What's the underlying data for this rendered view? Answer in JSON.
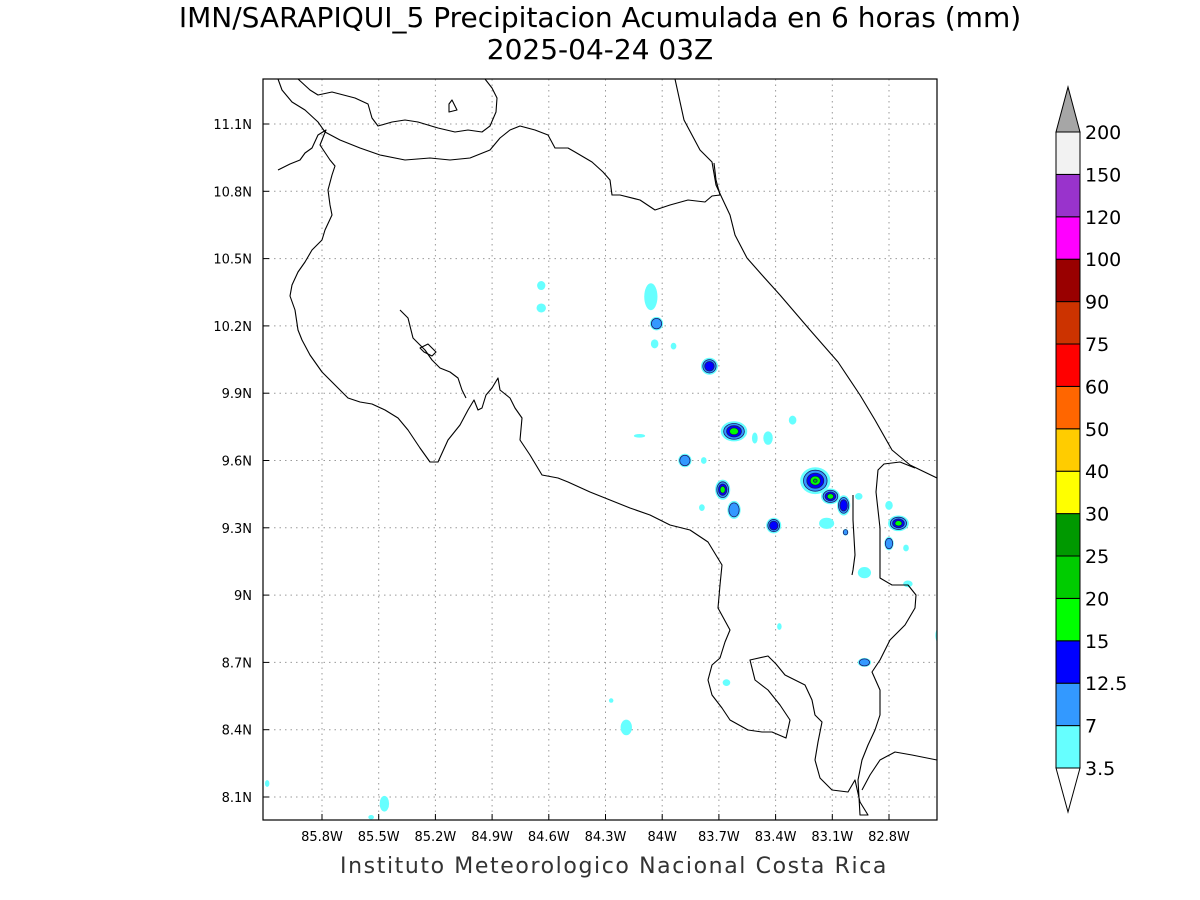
{
  "title": {
    "line1": "IMN/SARAPIQUI_5 Precipitacion Acumulada en 6 horas (mm)",
    "line2": "2025-04-24 03Z"
  },
  "footer": "Instituto Meteorologico Nacional Costa Rica",
  "axes": {
    "lon_ticks": [
      "85.8W",
      "85.5W",
      "85.2W",
      "84.9W",
      "84.6W",
      "84.3W",
      "84W",
      "83.7W",
      "83.4W",
      "83.1W",
      "82.8W"
    ],
    "lat_ticks": [
      "11.1N",
      "10.8N",
      "10.5N",
      "10.2N",
      "9.9N",
      "9.6N",
      "9.3N",
      "9N",
      "8.7N",
      "8.4N",
      "8.1N"
    ],
    "grid": "dotted"
  },
  "colorbar": {
    "labels": [
      "3.5",
      "7",
      "12.5",
      "15",
      "20",
      "25",
      "30",
      "40",
      "50",
      "60",
      "75",
      "90",
      "100",
      "120",
      "150",
      "200"
    ],
    "colors": [
      "#ffffff",
      "#66ffff",
      "#3399ff",
      "#0000ff",
      "#00ff00",
      "#00cc00",
      "#009900",
      "#ffff00",
      "#ffcc00",
      "#ff6600",
      "#ff0000",
      "#cc3300",
      "#990000",
      "#ff00ff",
      "#9933cc",
      "#f2f2f2",
      "#a6a6a6"
    ]
  },
  "precip_cells": [
    {
      "lon": -84.64,
      "lat": 10.38,
      "rx": 0.022,
      "ry": 0.02,
      "level": 0
    },
    {
      "lon": -84.64,
      "lat": 10.28,
      "rx": 0.025,
      "ry": 0.02,
      "level": 0
    },
    {
      "lon": -84.06,
      "lat": 10.33,
      "rx": 0.035,
      "ry": 0.06,
      "level": 0
    },
    {
      "lon": -84.03,
      "lat": 10.21,
      "rx": 0.035,
      "ry": 0.03,
      "level": 1
    },
    {
      "lon": -84.04,
      "lat": 10.12,
      "rx": 0.02,
      "ry": 0.02,
      "level": 0
    },
    {
      "lon": -83.94,
      "lat": 10.11,
      "rx": 0.015,
      "ry": 0.015,
      "level": 0
    },
    {
      "lon": -83.75,
      "lat": 10.02,
      "rx": 0.045,
      "ry": 0.038,
      "level": 2
    },
    {
      "lon": -83.62,
      "lat": 9.73,
      "rx": 0.07,
      "ry": 0.045,
      "level": 3
    },
    {
      "lon": -83.44,
      "lat": 9.7,
      "rx": 0.025,
      "ry": 0.03,
      "level": 0
    },
    {
      "lon": -83.51,
      "lat": 9.7,
      "rx": 0.015,
      "ry": 0.025,
      "level": 0
    },
    {
      "lon": -83.31,
      "lat": 9.78,
      "rx": 0.02,
      "ry": 0.02,
      "level": 0
    },
    {
      "lon": -84.12,
      "lat": 9.71,
      "rx": 0.03,
      "ry": 0.008,
      "level": 0
    },
    {
      "lon": -83.88,
      "lat": 9.6,
      "rx": 0.035,
      "ry": 0.03,
      "level": 1
    },
    {
      "lon": -83.78,
      "lat": 9.6,
      "rx": 0.015,
      "ry": 0.015,
      "level": 0
    },
    {
      "lon": -83.68,
      "lat": 9.47,
      "rx": 0.04,
      "ry": 0.045,
      "level": 3
    },
    {
      "lon": -83.62,
      "lat": 9.38,
      "rx": 0.035,
      "ry": 0.04,
      "level": 1
    },
    {
      "lon": -83.79,
      "lat": 9.39,
      "rx": 0.015,
      "ry": 0.015,
      "level": 0
    },
    {
      "lon": -83.41,
      "lat": 9.31,
      "rx": 0.04,
      "ry": 0.035,
      "level": 2
    },
    {
      "lon": -83.19,
      "lat": 9.51,
      "rx": 0.08,
      "ry": 0.06,
      "level": 4
    },
    {
      "lon": -83.11,
      "lat": 9.44,
      "rx": 0.05,
      "ry": 0.035,
      "level": 3
    },
    {
      "lon": -83.04,
      "lat": 9.4,
      "rx": 0.035,
      "ry": 0.045,
      "level": 2
    },
    {
      "lon": -83.13,
      "lat": 9.32,
      "rx": 0.04,
      "ry": 0.025,
      "level": 0
    },
    {
      "lon": -83.03,
      "lat": 9.28,
      "rx": 0.015,
      "ry": 0.015,
      "level": 1
    },
    {
      "lon": -82.96,
      "lat": 9.44,
      "rx": 0.02,
      "ry": 0.015,
      "level": 0
    },
    {
      "lon": -82.8,
      "lat": 9.4,
      "rx": 0.02,
      "ry": 0.02,
      "level": 0
    },
    {
      "lon": -82.75,
      "lat": 9.32,
      "rx": 0.055,
      "ry": 0.035,
      "level": 3
    },
    {
      "lon": -82.8,
      "lat": 9.23,
      "rx": 0.025,
      "ry": 0.03,
      "level": 1
    },
    {
      "lon": -82.71,
      "lat": 9.21,
      "rx": 0.015,
      "ry": 0.015,
      "level": 0
    },
    {
      "lon": -82.93,
      "lat": 9.1,
      "rx": 0.035,
      "ry": 0.025,
      "level": 0
    },
    {
      "lon": -82.7,
      "lat": 9.05,
      "rx": 0.025,
      "ry": 0.015,
      "level": 0
    },
    {
      "lon": -82.93,
      "lat": 8.7,
      "rx": 0.035,
      "ry": 0.02,
      "level": 1
    },
    {
      "lon": -82.54,
      "lat": 8.82,
      "rx": 0.015,
      "ry": 0.03,
      "level": 0
    },
    {
      "lon": -83.38,
      "lat": 8.86,
      "rx": 0.012,
      "ry": 0.015,
      "level": 0
    },
    {
      "lon": -83.66,
      "lat": 8.61,
      "rx": 0.02,
      "ry": 0.015,
      "level": 0
    },
    {
      "lon": -84.27,
      "lat": 8.53,
      "rx": 0.012,
      "ry": 0.01,
      "level": 0
    },
    {
      "lon": -84.19,
      "lat": 8.41,
      "rx": 0.03,
      "ry": 0.035,
      "level": 0
    },
    {
      "lon": -85.47,
      "lat": 8.07,
      "rx": 0.025,
      "ry": 0.035,
      "level": 0
    },
    {
      "lon": -85.54,
      "lat": 8.01,
      "rx": 0.015,
      "ry": 0.01,
      "level": 0
    },
    {
      "lon": -86.09,
      "lat": 8.16,
      "rx": 0.012,
      "ry": 0.015,
      "level": 0
    }
  ]
}
